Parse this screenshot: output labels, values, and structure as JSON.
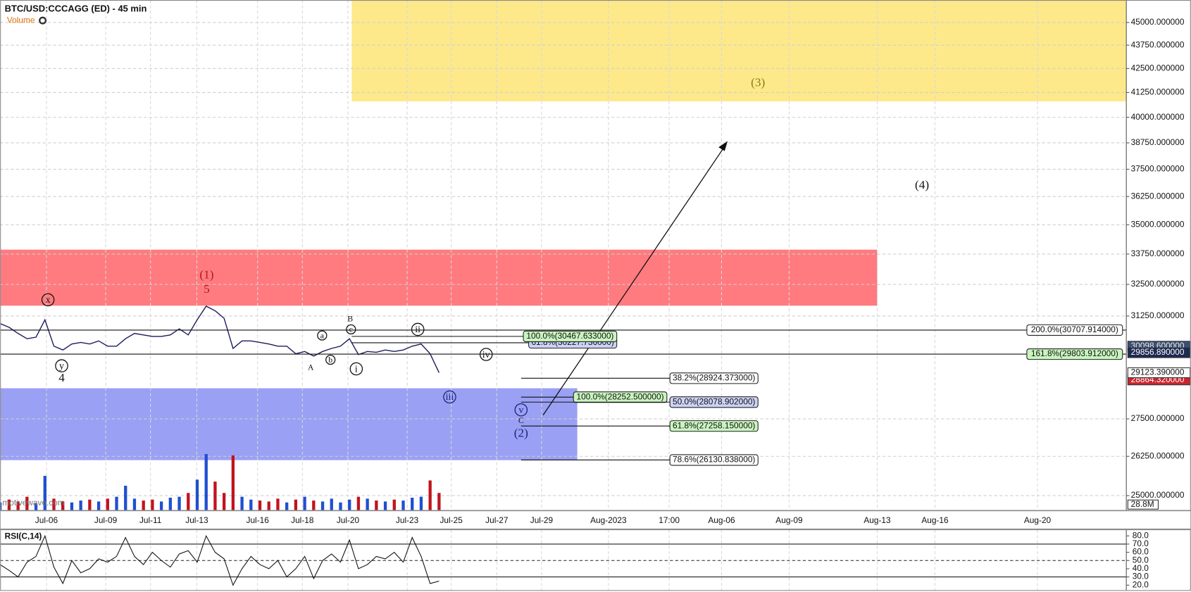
{
  "header": {
    "title": "BTC/USD:CCCAGG (ED) - 45 min",
    "volume_label": "Volume",
    "watermark": "motivewave.com"
  },
  "chart_data": {
    "type": "line",
    "log_scale": true,
    "grid": true,
    "categories": [
      "Jul-06",
      "Jul-09",
      "Jul-11",
      "Jul-13",
      "Jul-16",
      "Jul-18",
      "Jul-20",
      "Jul-23",
      "Jul-25",
      "Jul-27",
      "Jul-29",
      "Aug-2023",
      "17:00",
      "Aug-06",
      "Aug-09",
      "Aug-13",
      "Aug-16",
      "Aug-20"
    ],
    "ylim": [
      24556,
      46275
    ],
    "yticks": [
      {
        "value": 45000,
        "label": "45000.000000"
      },
      {
        "value": 43750,
        "label": "43750.000000"
      },
      {
        "value": 42500,
        "label": "42500.000000"
      },
      {
        "value": 41250,
        "label": "41250.000000"
      },
      {
        "value": 40000,
        "label": "40000.000000"
      },
      {
        "value": 38750,
        "label": "38750.000000"
      },
      {
        "value": 37500,
        "label": "37500.000000"
      },
      {
        "value": 36250,
        "label": "36250.000000"
      },
      {
        "value": 35000,
        "label": "35000.000000"
      },
      {
        "value": 33750,
        "label": "33750.000000"
      },
      {
        "value": 32500,
        "label": "32500.000000"
      },
      {
        "value": 31250,
        "label": "31250.000000"
      },
      {
        "value": 27500,
        "label": "27500.000000"
      },
      {
        "value": 26250,
        "label": "26250.000000"
      },
      {
        "value": 25000,
        "label": "25000.000000"
      }
    ],
    "price": {
      "color": "#1c1c5c",
      "values": [
        30958,
        30813,
        30581,
        30381,
        30438,
        31103,
        30099,
        29958,
        30183,
        30240,
        30183,
        30296,
        30099,
        30099,
        30381,
        30581,
        30524,
        30466,
        30466,
        30524,
        30755,
        30524,
        31103,
        31635,
        31456,
        31162,
        30014,
        30296,
        30296,
        30240,
        30183,
        30099,
        30099,
        29818,
        29902,
        29734,
        29902,
        30014,
        30099,
        30381,
        29790,
        29902,
        29874,
        29958,
        29902,
        29958,
        30099,
        30183,
        29818,
        29126
      ]
    },
    "volume": {
      "ylim": [
        0,
        300
      ],
      "up_color": "#1f4fd1",
      "down_color": "#c0141e",
      "values": [
        40,
        55,
        45,
        70,
        35,
        180,
        60,
        45,
        40,
        50,
        55,
        45,
        60,
        70,
        128,
        60,
        50,
        55,
        45,
        65,
        70,
        90,
        160,
        295,
        150,
        90,
        288,
        70,
        55,
        50,
        45,
        60,
        40,
        55,
        70,
        50,
        45,
        60,
        40,
        55,
        70,
        60,
        50,
        45,
        55,
        50,
        65,
        70,
        156,
        90
      ],
      "marker": {
        "value": 28.8,
        "label": "28.8M"
      }
    },
    "zones": [
      {
        "low": 40801,
        "high": 46275,
        "color": "#fde98a"
      },
      {
        "low": 31653,
        "high": 33935,
        "color": "#ff7b7f"
      },
      {
        "low": 26126,
        "high": 28567,
        "color": "#9aa0f3"
      }
    ],
    "price_markers": [
      {
        "value": 30098.6,
        "label": "30098.600000",
        "color": "#3b4f73",
        "text_color": "#e8e8e8"
      },
      {
        "value": 29856.89,
        "label": "29856.890000",
        "color": "#1d2a52",
        "text_color": "#ffffff"
      },
      {
        "value": 28864.32,
        "label": "28864.320000",
        "color": "#c8262e",
        "text_color": "#ffffff"
      },
      {
        "value": 29123.39,
        "label": "29123.390000",
        "color": "#ffffff",
        "text_color": "#111111"
      }
    ],
    "fib_levels": [
      {
        "price": 30707.914,
        "label": "200.0%(30707.914000)",
        "color": "#ffffff"
      },
      {
        "price": 29803.912,
        "label": "161.8%(29803.912000)",
        "color": "#c9f5bf"
      },
      {
        "price": 30227.736,
        "label": "61.8%(30227.736000)",
        "color": "#cdd3f5"
      },
      {
        "price": 30467.633,
        "label": "100.0%(30467.633000)",
        "color": "#c9f5bf"
      },
      {
        "price": 28924.373,
        "label": "38.2%(28924.373000)",
        "color": "#ffffff"
      },
      {
        "price": 28252.5,
        "label": "100.0%(28252.500000)",
        "color": "#c9f5bf"
      },
      {
        "price": 28078.902,
        "label": "50.0%(28078.902000)",
        "color": "#cdd3f5"
      },
      {
        "price": 27258.15,
        "label": "61.8%(27258.150000)",
        "color": "#c9f5bf"
      },
      {
        "price": 26130.838,
        "label": "78.6%(26130.838000)",
        "color": "#ffffff"
      }
    ],
    "waves": [
      {
        "text": "x",
        "circled": true,
        "color": "#111111"
      },
      {
        "text": "y",
        "circled": true,
        "color": "#111111"
      },
      {
        "text": "4",
        "circled": false,
        "color": "#111111"
      },
      {
        "text": "(1)",
        "circled": false,
        "color": "#b0161c"
      },
      {
        "text": "5",
        "circled": false,
        "color": "#b0161c"
      },
      {
        "text": "a",
        "circled": true,
        "color": "#111111"
      },
      {
        "text": "b",
        "circled": true,
        "color": "#111111"
      },
      {
        "text": "A",
        "circled": false,
        "color": "#111111"
      },
      {
        "text": "B",
        "circled": false,
        "color": "#111111"
      },
      {
        "text": "c",
        "circled": true,
        "color": "#111111"
      },
      {
        "text": "i",
        "circled": true,
        "color": "#111111"
      },
      {
        "text": "ii",
        "circled": true,
        "color": "#111111"
      },
      {
        "text": "iv",
        "circled": true,
        "color": "#111111"
      },
      {
        "text": "iii",
        "circled": true,
        "color": "#1a237e"
      },
      {
        "text": "v",
        "circled": true,
        "color": "#1a237e"
      },
      {
        "text": "C",
        "circled": false,
        "color": "#111111"
      },
      {
        "text": "(2)",
        "circled": false,
        "color": "#1a237e"
      },
      {
        "text": "(3)",
        "circled": false,
        "color": "#8a7a10"
      },
      {
        "text": "(4)",
        "circled": false,
        "color": "#111111"
      }
    ],
    "rsi": {
      "title": "RSI(C,14)",
      "color": "#111111",
      "ylim": [
        13.5,
        85.6
      ],
      "yticks": [
        {
          "value": 80,
          "label": "80.0"
        },
        {
          "value": 70,
          "label": "70.0"
        },
        {
          "value": 60,
          "label": "60.0"
        },
        {
          "value": 50,
          "label": "50.0"
        },
        {
          "value": 40,
          "label": "40.0"
        },
        {
          "value": 30,
          "label": "30.0"
        },
        {
          "value": 20,
          "label": "20.0"
        }
      ],
      "overbought": 70,
      "midline": 50,
      "oversold": 30,
      "values": [
        45,
        38,
        30,
        48,
        55,
        80,
        42,
        22,
        50,
        35,
        40,
        52,
        48,
        55,
        78,
        55,
        45,
        60,
        50,
        42,
        58,
        62,
        48,
        80,
        60,
        52,
        20,
        40,
        55,
        45,
        40,
        50,
        30,
        40,
        55,
        28,
        50,
        58,
        48,
        75,
        40,
        45,
        55,
        52,
        60,
        48,
        78,
        55,
        22,
        25
      ]
    }
  }
}
